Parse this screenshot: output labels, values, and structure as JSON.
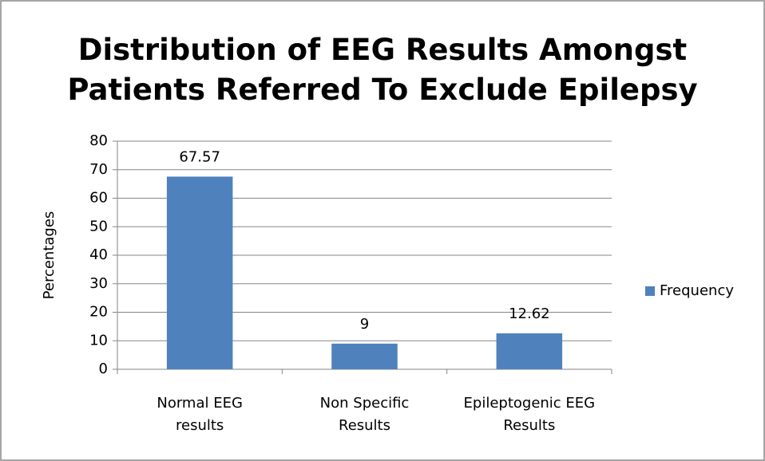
{
  "chart_data": {
    "type": "bar",
    "title": "Distribution of EEG Results Amongst\nPatients Referred To Exclude Epilepsy",
    "y_label": "Percentages",
    "categories": [
      "Normal EEG\nresults",
      "Non Specific\nResults",
      "Epileptogenic EEG\nResults"
    ],
    "series": [
      {
        "name": "Frequency",
        "color": "#4f81bd",
        "values": [
          67.57,
          9,
          12.62
        ]
      }
    ],
    "ylim": [
      0,
      80
    ],
    "yticks": [
      0,
      10,
      20,
      30,
      40,
      50,
      60,
      70,
      80
    ],
    "grid": true,
    "legend": "right"
  }
}
